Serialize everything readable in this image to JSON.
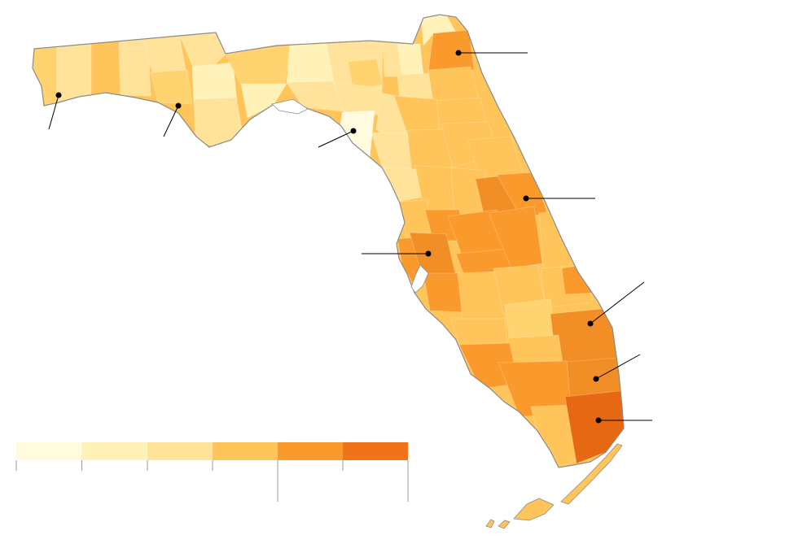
{
  "map": {
    "region": "Florida",
    "counties_shown_as_choropleth": true
  },
  "legend": {
    "bins": [
      {
        "color": "#fffbdf"
      },
      {
        "color": "#fff2b8"
      },
      {
        "color": "#ffe39a"
      },
      {
        "color": "#ffc55a"
      },
      {
        "color": "#fb9a2c"
      },
      {
        "color": "#ef7318"
      }
    ],
    "labels_visible": false
  },
  "callouts": {
    "count": 9
  }
}
